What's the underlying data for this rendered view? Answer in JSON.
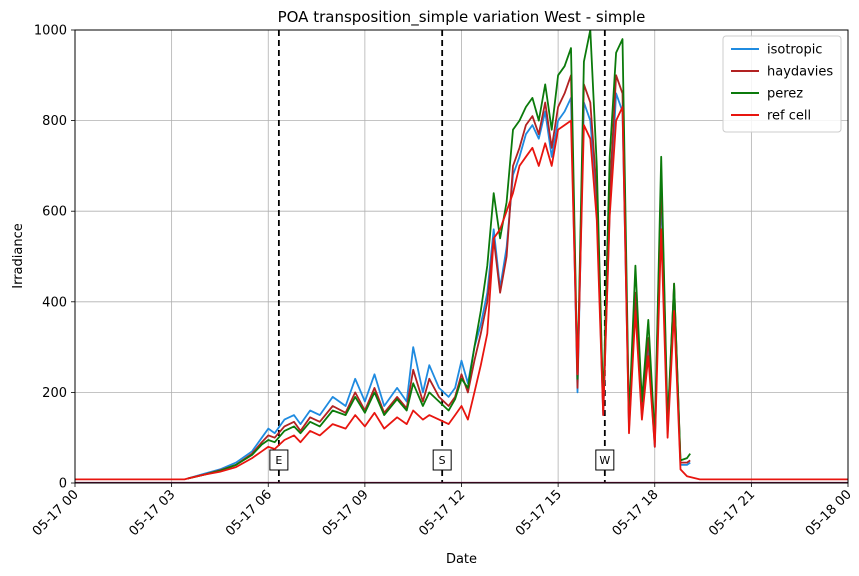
{
  "chart_data": {
    "type": "line",
    "title": "POA transposition_simple variation West - simple",
    "xlabel": "Date",
    "ylabel": "Irradiance",
    "xlim": [
      0,
      24
    ],
    "ylim": [
      0,
      1000
    ],
    "grid": true,
    "legend_position": "top-right",
    "x_ticks": [
      {
        "value": 0,
        "label": "05-17 00"
      },
      {
        "value": 3,
        "label": "05-17 03"
      },
      {
        "value": 6,
        "label": "05-17 06"
      },
      {
        "value": 9,
        "label": "05-17 09"
      },
      {
        "value": 12,
        "label": "05-17 12"
      },
      {
        "value": 15,
        "label": "05-17 15"
      },
      {
        "value": 18,
        "label": "05-17 18"
      },
      {
        "value": 21,
        "label": "05-17 21"
      },
      {
        "value": 24,
        "label": "05-18 00"
      }
    ],
    "y_ticks": [
      {
        "value": 0,
        "label": "0"
      },
      {
        "value": 200,
        "label": "200"
      },
      {
        "value": 400,
        "label": "400"
      },
      {
        "value": 600,
        "label": "600"
      },
      {
        "value": 800,
        "label": "800"
      },
      {
        "value": 1000,
        "label": "1000"
      }
    ],
    "vertical_markers": [
      {
        "x": 6.33,
        "label": "E"
      },
      {
        "x": 11.4,
        "label": "S"
      },
      {
        "x": 16.45,
        "label": "W"
      }
    ],
    "series": [
      {
        "name": "isotropic",
        "color": "#1f8be0",
        "x": [
          3.5,
          4.0,
          4.5,
          5.0,
          5.5,
          5.8,
          6.0,
          6.2,
          6.5,
          6.8,
          7.0,
          7.3,
          7.6,
          8.0,
          8.4,
          8.7,
          9.0,
          9.3,
          9.6,
          10.0,
          10.3,
          10.5,
          10.8,
          11.0,
          11.3,
          11.6,
          11.8,
          12.0,
          12.2,
          12.4,
          12.6,
          12.8,
          13.0,
          13.2,
          13.4,
          13.6,
          13.8,
          14.0,
          14.2,
          14.4,
          14.6,
          14.8,
          15.0,
          15.2,
          15.4,
          15.6,
          15.8,
          16.0,
          16.2,
          16.4,
          16.6,
          16.8,
          17.0,
          17.2,
          17.4,
          17.6,
          17.8,
          18.0,
          18.2,
          18.4,
          18.6,
          18.8,
          19.0,
          19.1
        ],
        "y": [
          10,
          20,
          30,
          45,
          70,
          100,
          120,
          110,
          140,
          150,
          130,
          160,
          150,
          190,
          170,
          230,
          180,
          240,
          170,
          210,
          180,
          300,
          200,
          260,
          210,
          190,
          210,
          270,
          220,
          300,
          350,
          420,
          560,
          430,
          520,
          680,
          720,
          770,
          790,
          760,
          820,
          720,
          800,
          820,
          850,
          200,
          840,
          800,
          620,
          150,
          600,
          860,
          820,
          120,
          400,
          150,
          300,
          80,
          650,
          110,
          430,
          40,
          40,
          45
        ]
      },
      {
        "name": "haydavies",
        "color": "#b22222",
        "x": [
          3.5,
          4.0,
          4.5,
          5.0,
          5.5,
          5.8,
          6.0,
          6.2,
          6.5,
          6.8,
          7.0,
          7.3,
          7.6,
          8.0,
          8.4,
          8.7,
          9.0,
          9.3,
          9.6,
          10.0,
          10.3,
          10.5,
          10.8,
          11.0,
          11.3,
          11.6,
          11.8,
          12.0,
          12.2,
          12.4,
          12.6,
          12.8,
          13.0,
          13.2,
          13.4,
          13.6,
          13.8,
          14.0,
          14.2,
          14.4,
          14.6,
          14.8,
          15.0,
          15.2,
          15.4,
          15.6,
          15.8,
          16.0,
          16.2,
          16.4,
          16.6,
          16.8,
          17.0,
          17.2,
          17.4,
          17.6,
          17.8,
          18.0,
          18.2,
          18.4,
          18.6,
          18.8,
          19.0,
          19.1
        ],
        "y": [
          10,
          18,
          28,
          40,
          65,
          90,
          105,
          100,
          125,
          135,
          115,
          145,
          135,
          170,
          155,
          200,
          160,
          210,
          155,
          190,
          165,
          250,
          180,
          230,
          190,
          170,
          190,
          240,
          200,
          270,
          330,
          400,
          540,
          420,
          500,
          700,
          740,
          790,
          810,
          770,
          840,
          740,
          830,
          860,
          900,
          210,
          880,
          840,
          640,
          160,
          640,
          900,
          860,
          130,
          420,
          160,
          320,
          90,
          680,
          120,
          440,
          45,
          45,
          50
        ]
      },
      {
        "name": "perez",
        "color": "#0b7a0b",
        "x": [
          3.5,
          4.0,
          4.5,
          5.0,
          5.5,
          5.8,
          6.0,
          6.2,
          6.5,
          6.8,
          7.0,
          7.3,
          7.6,
          8.0,
          8.4,
          8.7,
          9.0,
          9.3,
          9.6,
          10.0,
          10.3,
          10.5,
          10.8,
          11.0,
          11.3,
          11.6,
          11.8,
          12.0,
          12.2,
          12.4,
          12.6,
          12.8,
          13.0,
          13.2,
          13.4,
          13.6,
          13.8,
          14.0,
          14.2,
          14.4,
          14.6,
          14.8,
          15.0,
          15.2,
          15.4,
          15.6,
          15.8,
          16.0,
          16.2,
          16.4,
          16.6,
          16.8,
          17.0,
          17.2,
          17.4,
          17.6,
          17.8,
          18.0,
          18.2,
          18.4,
          18.6,
          18.8,
          19.0,
          19.1
        ],
        "y": [
          10,
          18,
          27,
          40,
          62,
          85,
          95,
          90,
          115,
          125,
          110,
          135,
          125,
          160,
          150,
          190,
          155,
          200,
          150,
          185,
          160,
          220,
          170,
          200,
          180,
          160,
          185,
          230,
          210,
          300,
          380,
          480,
          640,
          540,
          620,
          780,
          800,
          830,
          850,
          800,
          880,
          780,
          900,
          920,
          960,
          230,
          930,
          1000,
          700,
          170,
          720,
          950,
          980,
          140,
          480,
          180,
          360,
          100,
          720,
          130,
          440,
          50,
          55,
          65
        ]
      },
      {
        "name": "ref cell",
        "color": "#e8150f",
        "x": [
          0.0,
          3.4,
          3.5,
          4.0,
          4.5,
          5.0,
          5.5,
          5.8,
          6.0,
          6.2,
          6.5,
          6.8,
          7.0,
          7.3,
          7.6,
          8.0,
          8.4,
          8.7,
          9.0,
          9.3,
          9.6,
          10.0,
          10.3,
          10.5,
          10.8,
          11.0,
          11.3,
          11.6,
          11.8,
          12.0,
          12.2,
          12.4,
          12.6,
          12.8,
          13.0,
          13.2,
          13.4,
          13.6,
          13.8,
          14.0,
          14.2,
          14.4,
          14.6,
          14.8,
          15.0,
          15.2,
          15.4,
          15.6,
          15.8,
          16.0,
          16.2,
          16.4,
          16.6,
          16.8,
          17.0,
          17.2,
          17.4,
          17.6,
          17.8,
          18.0,
          18.2,
          18.4,
          18.6,
          18.8,
          19.0,
          19.4,
          24.0
        ],
        "y": [
          8,
          8,
          10,
          18,
          25,
          35,
          55,
          70,
          80,
          75,
          95,
          105,
          90,
          115,
          105,
          130,
          120,
          150,
          125,
          155,
          120,
          145,
          130,
          160,
          140,
          150,
          140,
          130,
          150,
          170,
          140,
          200,
          260,
          330,
          540,
          560,
          600,
          640,
          700,
          720,
          740,
          700,
          750,
          700,
          780,
          790,
          800,
          240,
          790,
          760,
          580,
          150,
          590,
          800,
          830,
          110,
          380,
          140,
          280,
          80,
          560,
          100,
          380,
          30,
          15,
          8,
          8
        ]
      }
    ]
  }
}
